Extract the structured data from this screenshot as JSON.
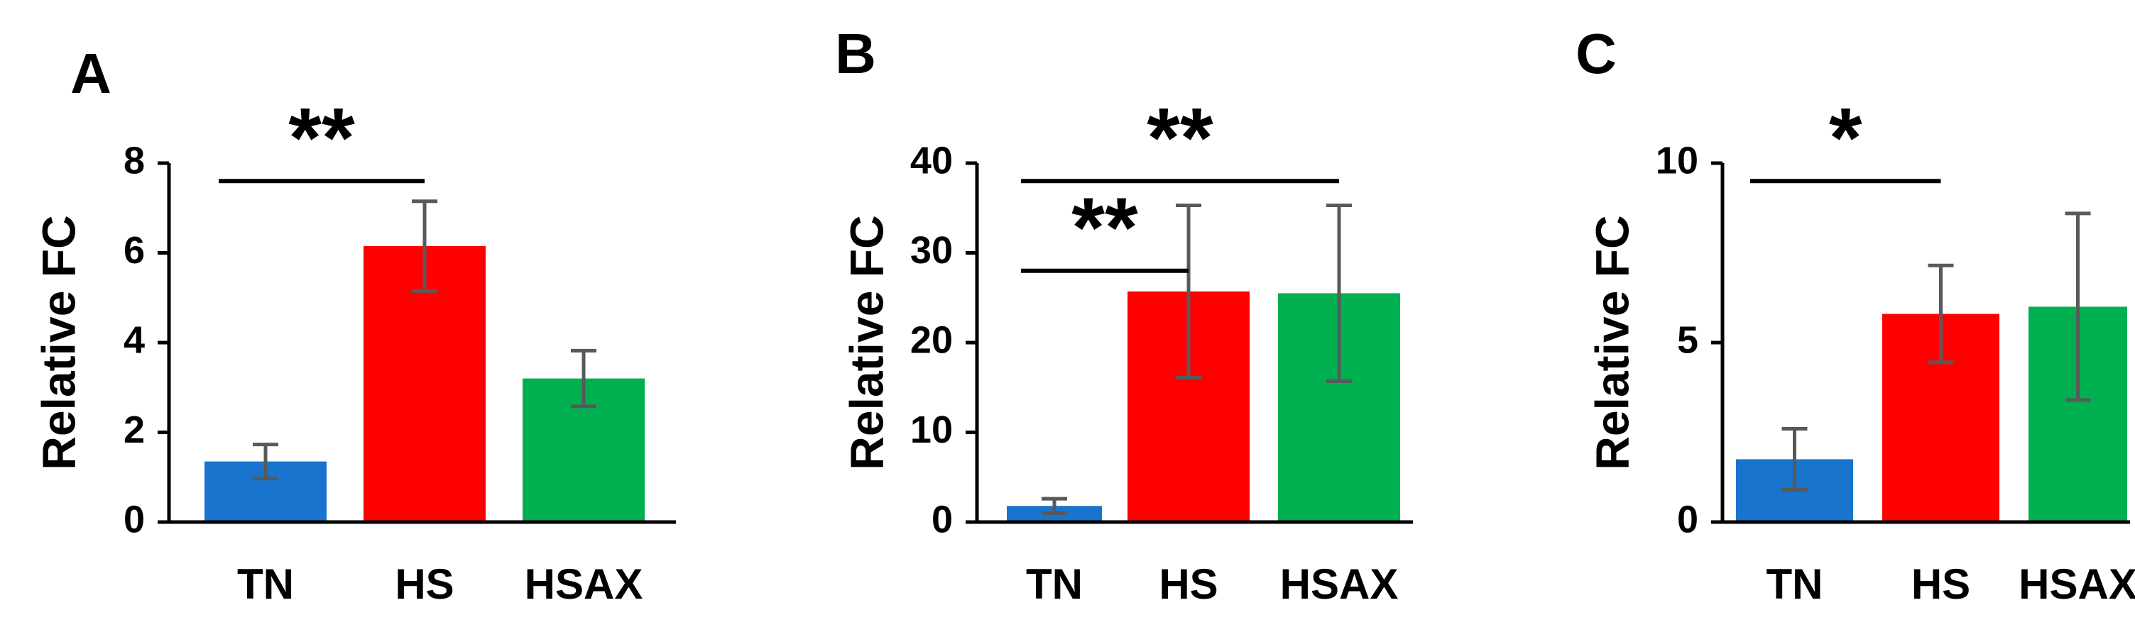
{
  "chart_data": [
    {
      "panel_label": "A",
      "type": "bar",
      "categories": [
        "TN",
        "HS",
        "HSAX"
      ],
      "values": [
        1.35,
        6.15,
        3.2
      ],
      "errors": [
        0.38,
        1.0,
        0.62
      ],
      "colors": [
        "#1874CD",
        "#FF0000",
        "#00B050"
      ],
      "ylabel": "Relative FC",
      "ylim": [
        0,
        8
      ],
      "yticks": [
        0,
        2,
        4,
        6,
        8
      ],
      "ytick_labels": [
        "0",
        "2",
        "4",
        "6",
        "8"
      ],
      "significance": [
        {
          "from": "TN",
          "to": "HS",
          "level": 7.6,
          "label": "**"
        }
      ]
    },
    {
      "panel_label": "B",
      "type": "bar",
      "categories": [
        "TN",
        "HS",
        "HSAX"
      ],
      "values": [
        1.8,
        25.7,
        25.5
      ],
      "errors": [
        0.8,
        9.6,
        9.8
      ],
      "colors": [
        "#1874CD",
        "#FF0000",
        "#00B050"
      ],
      "ylabel": "Relative FC",
      "ylim": [
        0,
        40
      ],
      "yticks": [
        0,
        10,
        20,
        30,
        40
      ],
      "ytick_labels": [
        "0",
        "10",
        "20",
        "30",
        "40"
      ],
      "significance": [
        {
          "from": "TN",
          "to": "HSAX",
          "level": 38.0,
          "label": "**"
        },
        {
          "from": "TN",
          "to": "HS",
          "level": 28.0,
          "label": "**"
        }
      ]
    },
    {
      "panel_label": "C",
      "type": "bar",
      "categories": [
        "TN",
        "HS",
        "HSAX"
      ],
      "values": [
        1.75,
        5.8,
        6.0
      ],
      "errors": [
        0.85,
        1.35,
        2.6
      ],
      "colors": [
        "#1874CD",
        "#FF0000",
        "#00B050"
      ],
      "ylabel": "Relative FC",
      "ylim": [
        0,
        10
      ],
      "yticks": [
        0,
        5,
        10
      ],
      "ytick_labels": [
        "0",
        "5",
        "10"
      ],
      "significance": [
        {
          "from": "TN",
          "to": "HS",
          "level": 9.5,
          "label": "*"
        }
      ]
    }
  ]
}
